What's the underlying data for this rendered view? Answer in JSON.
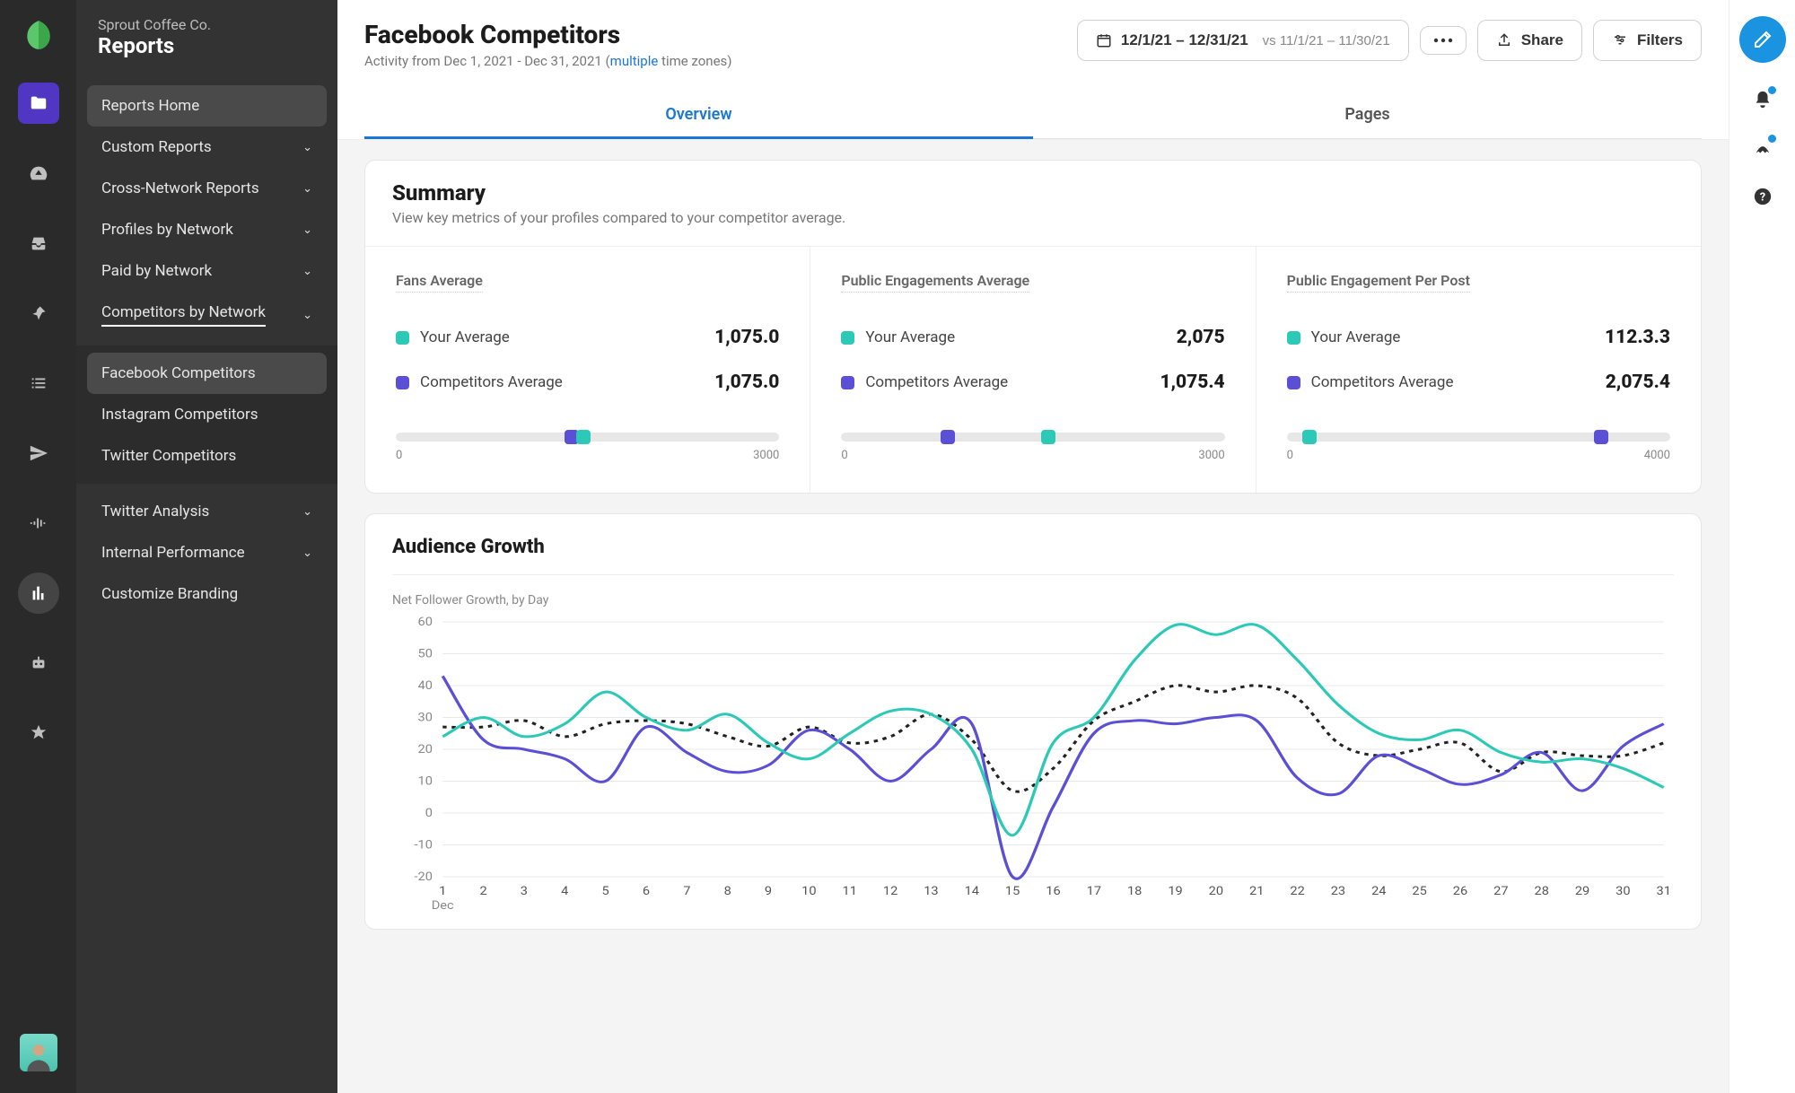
{
  "brand": {
    "org": "Sprout Coffee Co.",
    "section": "Reports"
  },
  "sidebar": {
    "home": "Reports Home",
    "items": [
      {
        "label": "Custom Reports"
      },
      {
        "label": "Cross-Network Reports"
      },
      {
        "label": "Profiles by Network"
      },
      {
        "label": "Paid by Network"
      },
      {
        "label": "Competitors by Network"
      }
    ],
    "subitems": [
      {
        "label": "Facebook Competitors"
      },
      {
        "label": "Instagram Competitors"
      },
      {
        "label": "Twitter Competitors"
      }
    ],
    "tail": [
      {
        "label": "Twitter Analysis"
      },
      {
        "label": "Internal Performance"
      },
      {
        "label": "Customize Branding",
        "no_chev": true
      }
    ]
  },
  "header": {
    "title": "Facebook Competitors",
    "subtitle_prefix": "Activity from Dec 1, 2021 - Dec 31, 2021 (",
    "subtitle_link": "multiple",
    "subtitle_suffix": " time zones)",
    "date_primary": "12/1/21 – 12/31/21",
    "date_vs": "vs 11/1/21 – 11/30/21",
    "share": "Share",
    "filters": "Filters"
  },
  "tabs": {
    "overview": "Overview",
    "pages": "Pages"
  },
  "summary": {
    "title": "Summary",
    "desc": "View key metrics of your profiles compared to your competitor average.",
    "your_label": "Your Average",
    "comp_label": "Competitors Average",
    "metrics": [
      {
        "title": "Fans Average",
        "your": "1,075.0",
        "comp": "1,075.0",
        "min": "0",
        "max": "3000",
        "teal_pct": 47,
        "purple_pct": 44
      },
      {
        "title": "Public Engagements Average",
        "your": "2,075",
        "comp": "1,075.4",
        "min": "0",
        "max": "3000",
        "teal_pct": 52,
        "purple_pct": 26
      },
      {
        "title": "Public Engagement Per Post",
        "your": "112.3.3",
        "comp": "2,075.4",
        "min": "0",
        "max": "4000",
        "teal_pct": 4,
        "purple_pct": 80
      }
    ]
  },
  "growth": {
    "title": "Audience Growth",
    "subtitle": "Net Follower Growth, by Day",
    "month": "Dec",
    "ylim": [
      -20,
      60
    ],
    "ytick_step": 10,
    "days": [
      1,
      2,
      3,
      4,
      5,
      6,
      7,
      8,
      9,
      10,
      11,
      12,
      13,
      14,
      15,
      16,
      17,
      18,
      19,
      20,
      21,
      22,
      23,
      24,
      25,
      26,
      27,
      28,
      29,
      30,
      31
    ],
    "series": {
      "teal": [
        24,
        30,
        24,
        28,
        38,
        30,
        26,
        31,
        22,
        17,
        25,
        32,
        31,
        20,
        -7,
        22,
        30,
        48,
        59,
        56,
        59,
        48,
        34,
        25,
        23,
        26,
        19,
        16,
        17,
        14,
        8
      ],
      "purple": [
        43,
        23,
        20,
        17,
        10,
        27,
        19,
        13,
        15,
        26,
        20,
        10,
        20,
        28,
        -20,
        2,
        25,
        29,
        28,
        30,
        29,
        11,
        6,
        18,
        14,
        9,
        12,
        19,
        7,
        21,
        28
      ],
      "dotted": [
        27,
        27,
        29,
        24,
        28,
        29,
        28,
        24,
        21,
        27,
        22,
        24,
        31,
        23,
        7,
        14,
        29,
        35,
        40,
        38,
        40,
        36,
        22,
        18,
        20,
        22,
        13,
        19,
        18,
        18,
        22
      ]
    },
    "colors": {
      "teal": "#2dc9b7",
      "purple": "#5b4fd6",
      "dotted": "#222222",
      "grid": "#e8e8e8"
    }
  }
}
